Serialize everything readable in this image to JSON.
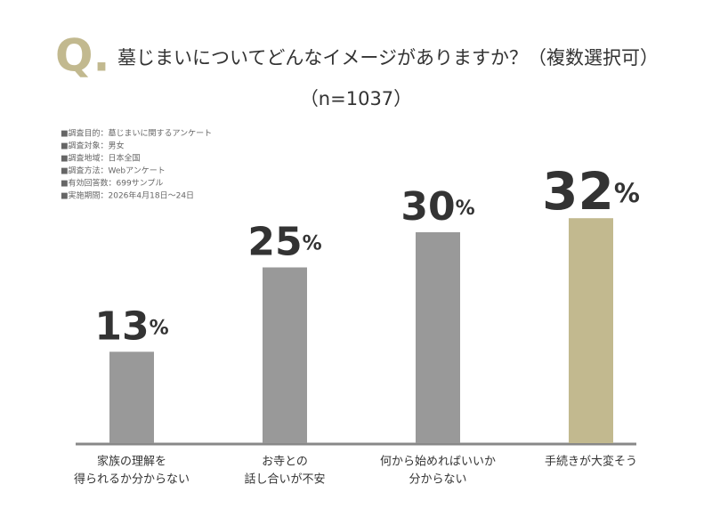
{
  "chart_data": {
    "type": "bar",
    "title_mark": "Q.",
    "title": "墓じまいについてどんなイメージがありますか？（複数選択可）",
    "subtitle": "（n=1037）",
    "notes": [
      "■調査目的：墓じまいに関するアンケート",
      "■調査対象：男女",
      "■調査地域：日本全国",
      "■調査方法：Webアンケート",
      "■有効回答数：699サンプル",
      "■実施期間：2026年4月18日～24日"
    ],
    "categories": [
      [
        "家族の理解を",
        "得られるか分からない"
      ],
      [
        "お寺との",
        "話し合いが不安"
      ],
      [
        "何から始めればいいか",
        "分からない"
      ],
      [
        "手続きが大変そう"
      ]
    ],
    "values": [
      13,
      25,
      30,
      32
    ],
    "value_labels": [
      "13%",
      "25%",
      "30%",
      "32%"
    ],
    "colors": [
      "#999999",
      "#999999",
      "#999999",
      "#c2b98f"
    ],
    "ylim": [
      0,
      40
    ]
  }
}
